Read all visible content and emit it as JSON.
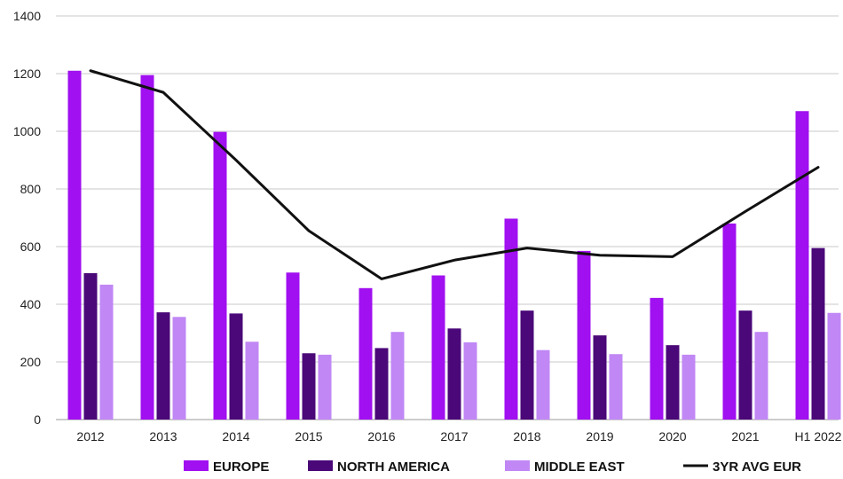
{
  "chart_data": {
    "type": "bar",
    "categories": [
      "2012",
      "2013",
      "2014",
      "2015",
      "2016",
      "2017",
      "2018",
      "2019",
      "2020",
      "2021",
      "H1 2022"
    ],
    "series": [
      {
        "name": "EUROPE",
        "type": "bar",
        "color": "#a010f0",
        "values": [
          1210,
          1195,
          998,
          510,
          456,
          500,
          697,
          585,
          422,
          680,
          1070
        ]
      },
      {
        "name": "NORTH AMERICA",
        "type": "bar",
        "color": "#4a0878",
        "values": [
          508,
          372,
          368,
          230,
          248,
          316,
          378,
          292,
          258,
          378,
          595
        ]
      },
      {
        "name": "MIDDLE EAST",
        "type": "bar",
        "color": "#c087f5",
        "values": [
          468,
          356,
          270,
          225,
          304,
          268,
          241,
          227,
          225,
          304,
          370
        ]
      },
      {
        "name": "3YR AVG EUR",
        "type": "line",
        "color": "#111111",
        "values": [
          1210,
          1135,
          900,
          655,
          488,
          553,
          595,
          570,
          565,
          722,
          875
        ]
      }
    ],
    "yticks": [
      0,
      200,
      400,
      600,
      800,
      1000,
      1200,
      1400
    ],
    "ylim": [
      0,
      1400
    ],
    "grid": true,
    "legend_position": "bottom"
  }
}
